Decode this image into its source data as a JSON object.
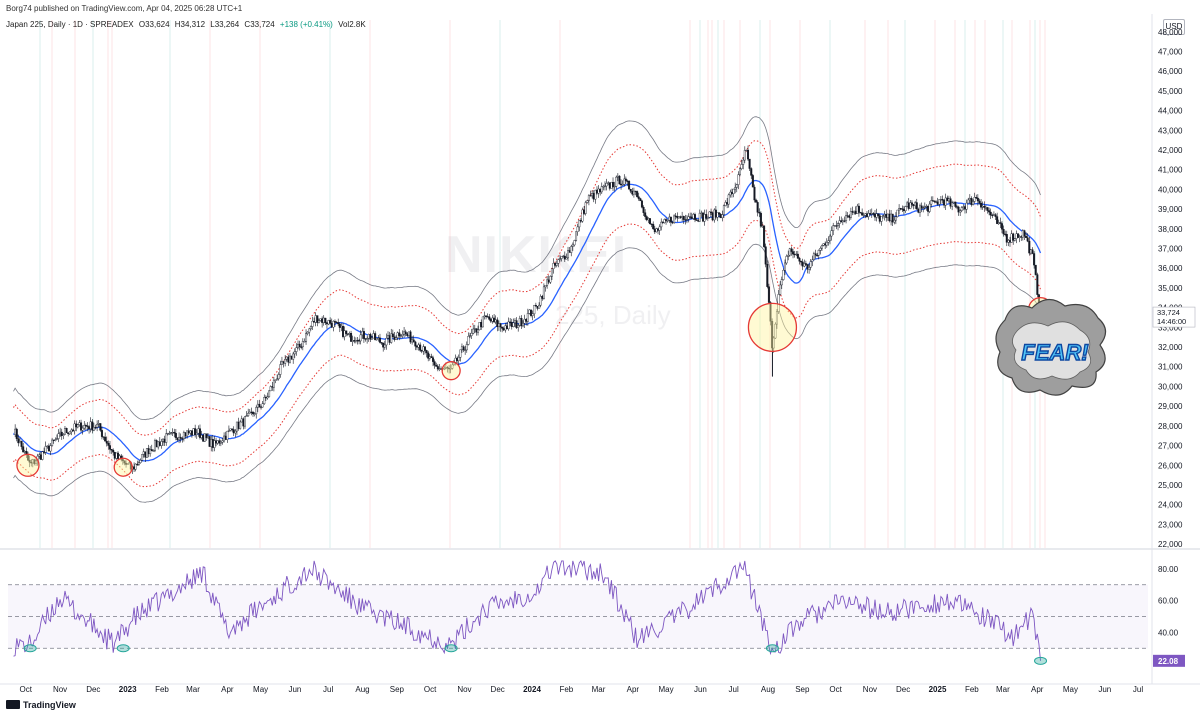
{
  "header": {
    "published": "Borg74 published on TradingView.com, Apr 04, 2025 06:28 UTC+1",
    "symbol": "Japan 225, Daily · 1D · SPREADEX",
    "open": "O33,624",
    "high": "H34,312",
    "low": "L33,264",
    "close": "C33,724",
    "change": "+138 (+0.41%)",
    "volume": "Vol2.8K",
    "currency": "USD"
  },
  "watermark": {
    "symbol": "NIKKEI",
    "interval": "225, Daily"
  },
  "sticker": {
    "text": "FEAR!"
  },
  "footer": {
    "brand": "TradingView"
  },
  "price_badge": {
    "price": "33,724",
    "countdown": "14:46:00"
  },
  "rsi_badge": {
    "value": "22.08"
  },
  "colors": {
    "candles": "#131722",
    "ma": "#2962ff",
    "inner_band": "#e53935",
    "outer_band": "#787b86",
    "rsi": "#7e57c2",
    "oversold_marker": "#26a69a",
    "buy_circle": "#e53935",
    "buy_circle_fill": "#fff59d"
  },
  "chart_data": [
    {
      "type": "candlestick",
      "title": "Japan 225, Daily · 1D · SPREADEX",
      "x_ticks": [
        "Oct",
        "Nov",
        "Dec",
        "2023",
        "Feb",
        "Mar",
        "Apr",
        "May",
        "Jun",
        "Jul",
        "Aug",
        "Sep",
        "Oct",
        "Nov",
        "Dec",
        "2024",
        "Feb",
        "Mar",
        "Apr",
        "May",
        "Jun",
        "Jul",
        "Aug",
        "Sep",
        "Oct",
        "Nov",
        "Dec",
        "2025",
        "Feb",
        "Mar",
        "Apr",
        "May",
        "Jun",
        "Jul"
      ],
      "y_ticks": [
        "48,000",
        "47,000",
        "46,000",
        "45,000",
        "44,000",
        "43,000",
        "42,000",
        "41,000",
        "40,000",
        "39,000",
        "38,000",
        "37,000",
        "36,000",
        "35,000",
        "34,000",
        "33,000",
        "32,000",
        "31,000",
        "30,000",
        "29,000",
        "28,000",
        "27,000",
        "26,000",
        "25,000",
        "24,000",
        "23,000",
        "22,000"
      ],
      "ylim": [
        21800,
        48600
      ],
      "grid": false,
      "series": [
        {
          "name": "close",
          "x": [
            "2022-09-20",
            "2022-10-05",
            "2022-10-20",
            "2022-11-05",
            "2022-11-20",
            "2022-12-05",
            "2022-12-20",
            "2023-01-05",
            "2023-01-20",
            "2023-02-05",
            "2023-02-20",
            "2023-03-05",
            "2023-03-20",
            "2023-04-05",
            "2023-04-20",
            "2023-05-05",
            "2023-05-20",
            "2023-06-05",
            "2023-06-20",
            "2023-07-05",
            "2023-07-20",
            "2023-08-05",
            "2023-08-20",
            "2023-09-05",
            "2023-09-20",
            "2023-10-05",
            "2023-10-20",
            "2023-11-05",
            "2023-11-20",
            "2023-12-05",
            "2023-12-20",
            "2024-01-05",
            "2024-01-20",
            "2024-02-05",
            "2024-02-20",
            "2024-03-05",
            "2024-03-20",
            "2024-04-05",
            "2024-04-20",
            "2024-05-05",
            "2024-05-20",
            "2024-06-05",
            "2024-06-20",
            "2024-07-05",
            "2024-07-12",
            "2024-07-20",
            "2024-07-27",
            "2024-08-05",
            "2024-08-10",
            "2024-08-20",
            "2024-09-05",
            "2024-09-20",
            "2024-10-05",
            "2024-10-20",
            "2024-11-05",
            "2024-11-20",
            "2024-12-05",
            "2024-12-20",
            "2025-01-05",
            "2025-01-20",
            "2025-02-05",
            "2025-02-20",
            "2025-03-05",
            "2025-03-20",
            "2025-03-28",
            "2025-04-04"
          ],
          "values": [
            27800,
            26000,
            26800,
            27700,
            28000,
            28000,
            26500,
            25800,
            26800,
            27400,
            27600,
            27700,
            27000,
            27800,
            28400,
            29300,
            31000,
            32000,
            33500,
            33200,
            32500,
            32600,
            32200,
            32800,
            32200,
            31000,
            30800,
            32400,
            33500,
            33000,
            33200,
            34000,
            36000,
            37000,
            39500,
            40000,
            40500,
            39800,
            37800,
            38500,
            38700,
            38600,
            38800,
            40500,
            42000,
            39500,
            38000,
            32000,
            34500,
            37000,
            36000,
            37200,
            38500,
            39000,
            38600,
            38500,
            39200,
            39000,
            39500,
            39000,
            39600,
            38600,
            37500,
            37800,
            36500,
            33724
          ]
        },
        {
          "name": "RSI",
          "x": [
            "2022-10-05",
            "2022-11-01",
            "2022-12-20",
            "2023-01-05",
            "2023-03-10",
            "2023-04-01",
            "2023-06-15",
            "2023-08-01",
            "2023-10-20",
            "2023-11-20",
            "2024-01-05",
            "2024-01-20",
            "2024-03-05",
            "2024-04-05",
            "2024-05-15",
            "2024-07-10",
            "2024-08-05",
            "2024-09-01",
            "2024-10-10",
            "2024-11-15",
            "2025-01-10",
            "2025-02-05",
            "2025-03-10",
            "2025-03-28",
            "2025-04-04"
          ],
          "values": [
            32,
            62,
            32,
            48,
            78,
            40,
            80,
            55,
            32,
            55,
            66,
            82,
            78,
            35,
            52,
            82,
            28,
            48,
            60,
            52,
            60,
            52,
            38,
            50,
            22.08
          ]
        }
      ]
    }
  ]
}
